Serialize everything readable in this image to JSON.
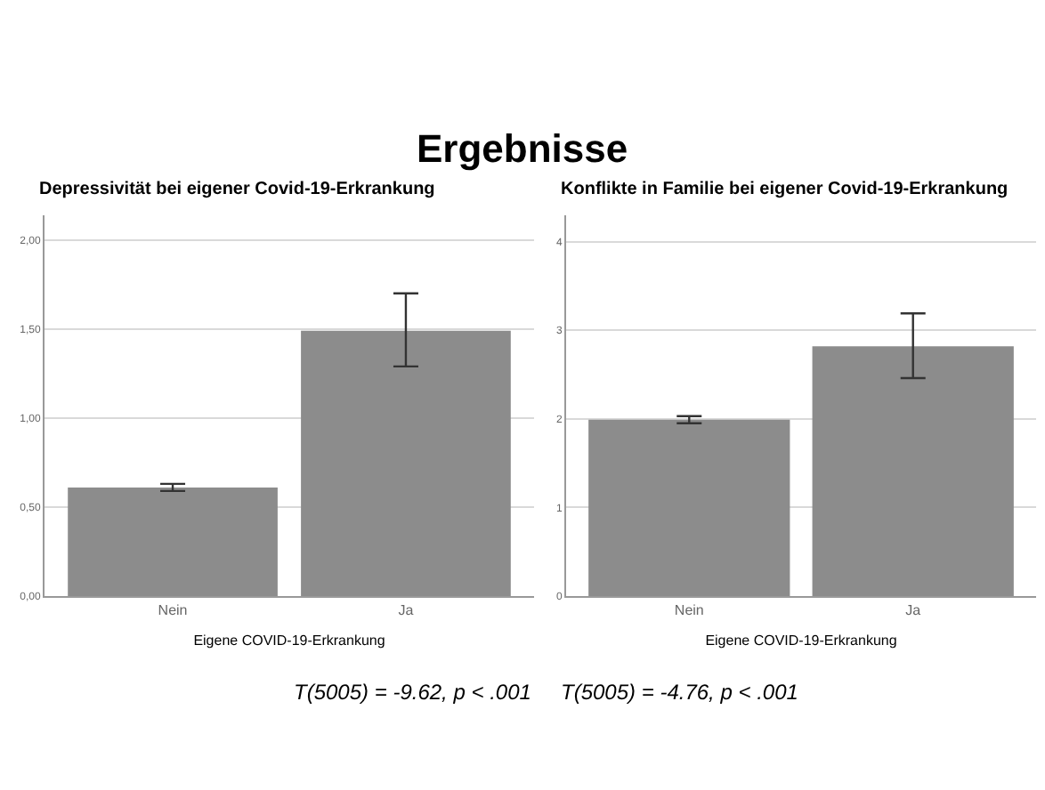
{
  "chart_data": [
    {
      "type": "other",
      "title": "Ergebnisse"
    },
    {
      "type": "bar",
      "title": "Depressivität bei eigener Covid-19-Erkrankung",
      "xlabel": "Eigene COVID-19-Erkrankung",
      "categories": [
        "Nein",
        "Ja"
      ],
      "values": [
        0.61,
        1.49
      ],
      "errors": [
        [
          0.59,
          0.63
        ],
        [
          1.29,
          1.7
        ]
      ],
      "color": "#8c8c8c",
      "ylim": [
        0,
        2.14
      ],
      "yticks": [
        {
          "value": 0,
          "label": "0,00"
        },
        {
          "value": 0.5,
          "label": "0,50"
        },
        {
          "value": 1,
          "label": "1,00"
        },
        {
          "value": 1.5,
          "label": "1,50"
        },
        {
          "value": 2,
          "label": "2,00"
        }
      ],
      "grid": "y",
      "annotations": [
        "T(5005) = -9.62, p < .001"
      ]
    },
    {
      "type": "bar",
      "title": "Konflikte in Familie bei eigener Covid-19-Erkrankung",
      "xlabel": "Eigene COVID-19-Erkrankung",
      "categories": [
        "Nein",
        "Ja"
      ],
      "values": [
        1.99,
        2.82
      ],
      "errors": [
        [
          1.95,
          2.03
        ],
        [
          2.46,
          3.19
        ]
      ],
      "color": "#8c8c8c",
      "ylim": [
        0,
        4.3
      ],
      "yticks": [
        0,
        1,
        2,
        3,
        4
      ],
      "grid": "y",
      "annotations": [
        "T(5005) = -4.76, p < .001"
      ]
    }
  ]
}
